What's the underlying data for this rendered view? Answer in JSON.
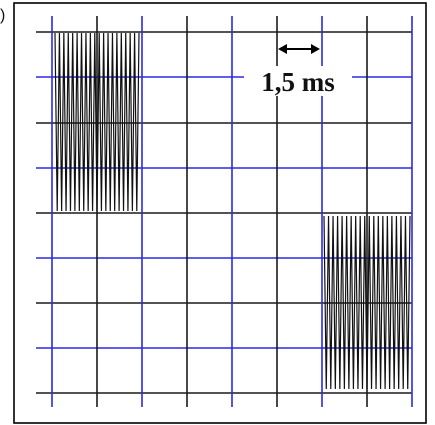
{
  "figure": {
    "edge_mark": ")",
    "time_scale_label": "1,5 ms",
    "colors": {
      "background": "#ffffff",
      "major_grid": "#1a1a1a",
      "minor_grid": "#2a2ae6",
      "signal": "#111111"
    },
    "icons": {
      "scale_arrow": "double-headed-arrow-icon"
    }
  }
}
